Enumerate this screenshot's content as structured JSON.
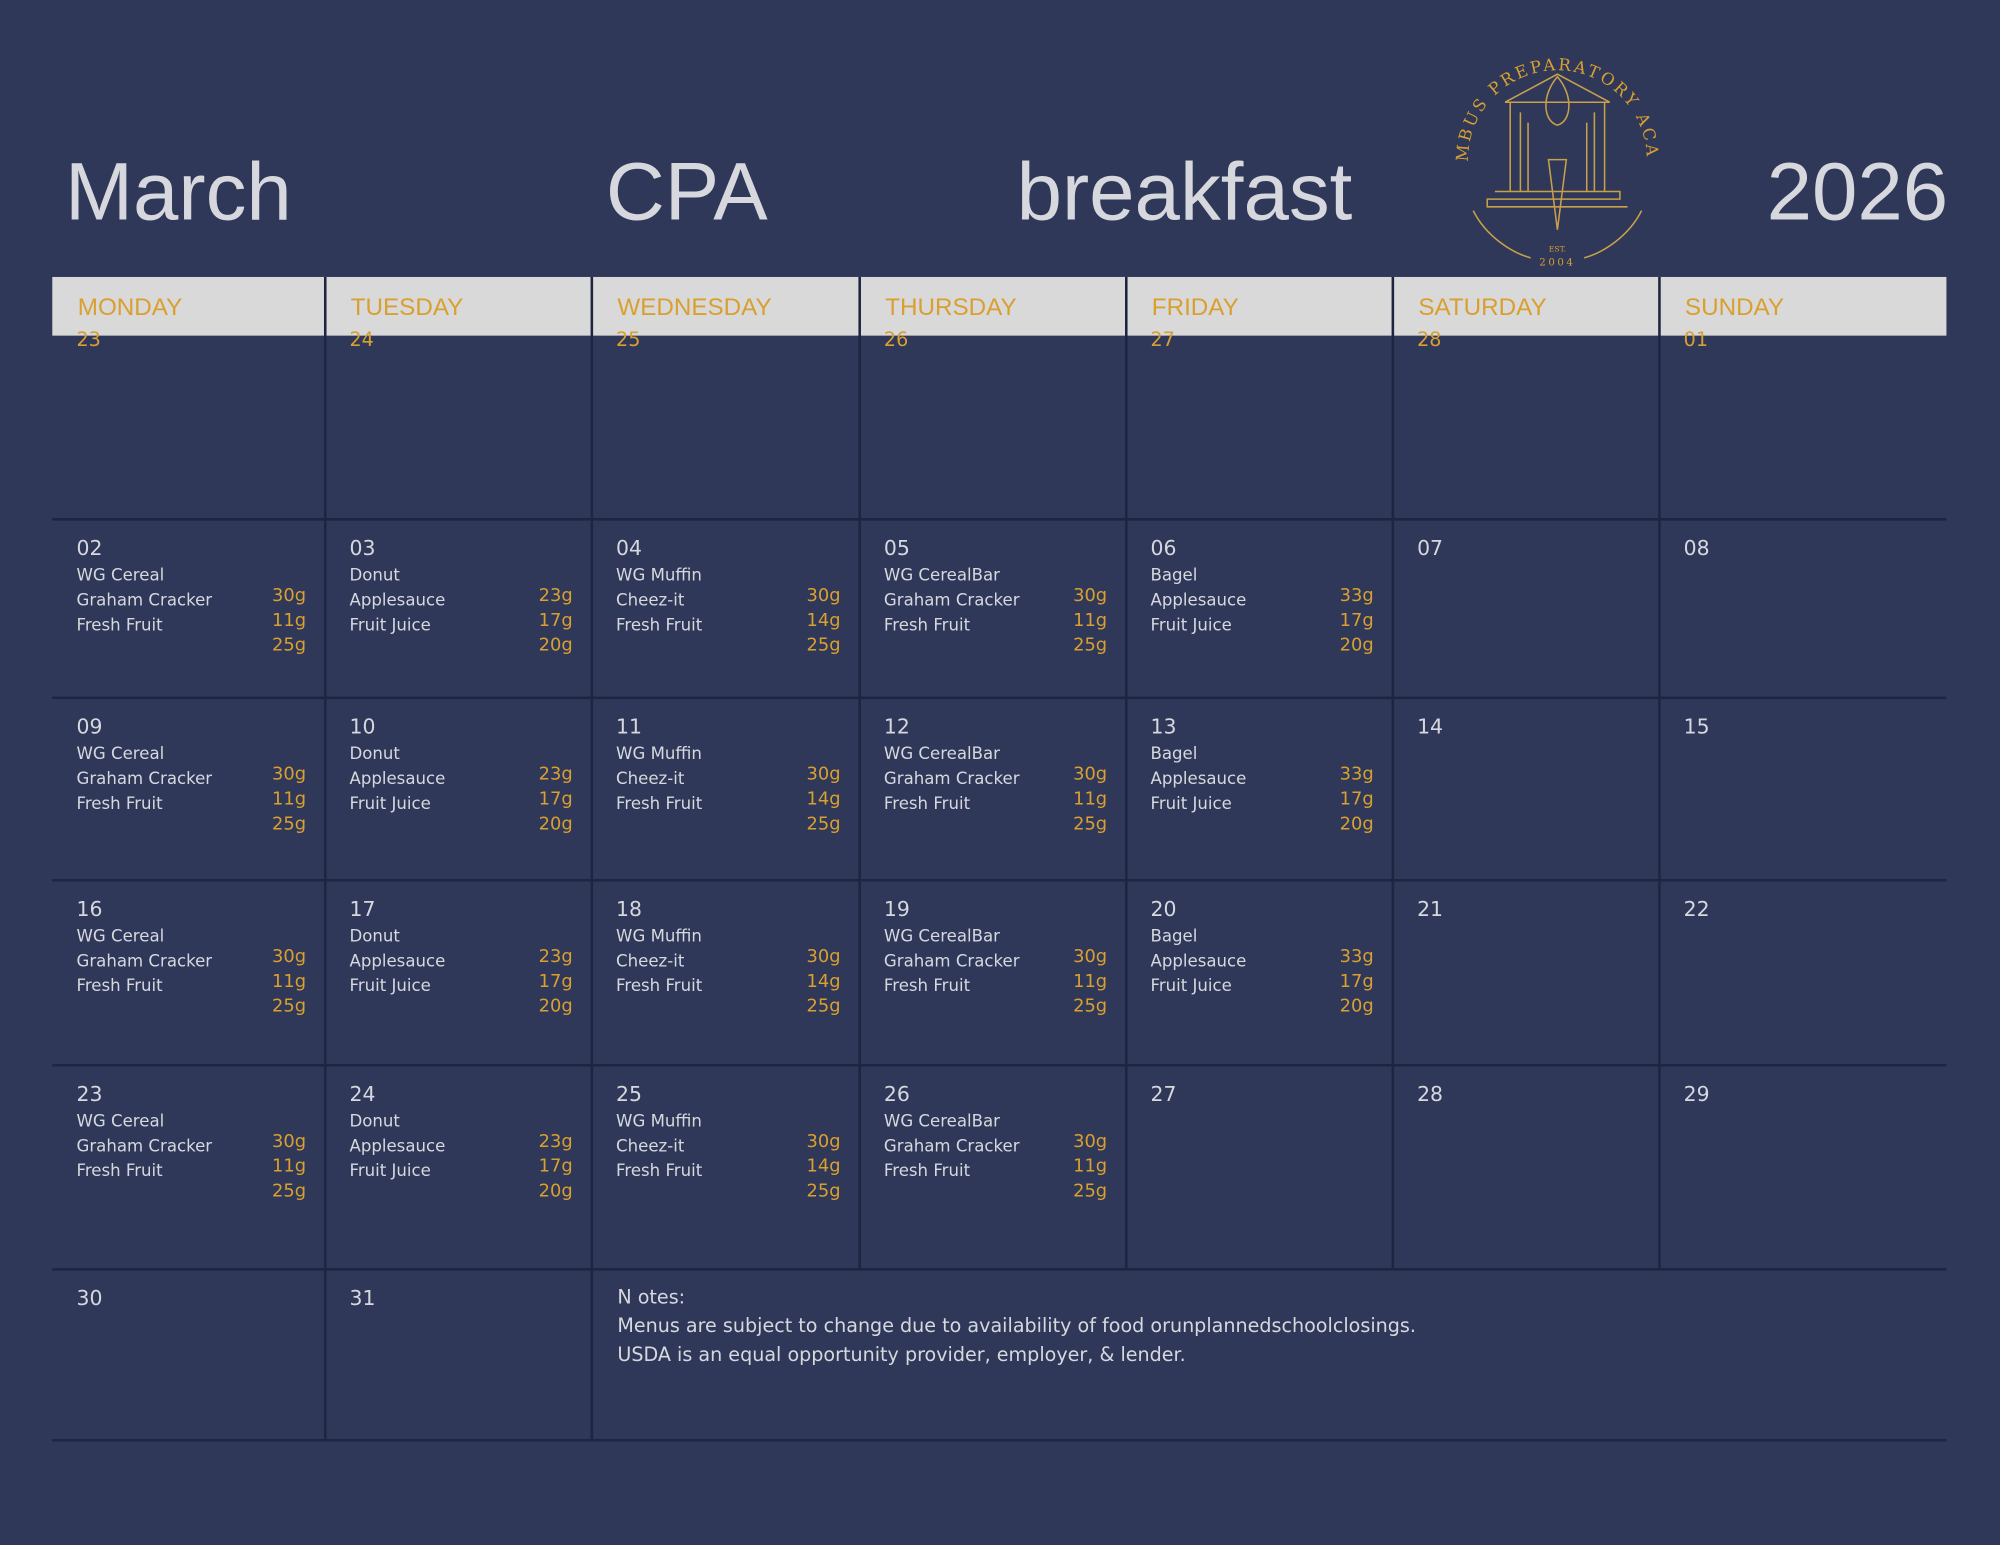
{
  "header": {
    "month": "March",
    "school": "CPA",
    "meal": "breakfast",
    "year": "2026"
  },
  "logo": {
    "name": "COLUMBUS PREPARATORY ACADEMY",
    "est": "EST.",
    "year": "2004"
  },
  "days": [
    "MONDAY",
    "TUESDAY",
    "WEDNESDAY",
    "THURSDAY",
    "FRIDAY",
    "SATURDAY",
    "SUNDAY"
  ],
  "weeks": [
    [
      {
        "date": "23"
      },
      {
        "date": "24"
      },
      {
        "date": "25"
      },
      {
        "date": "26"
      },
      {
        "date": "27"
      },
      {
        "date": "28"
      },
      {
        "date": "01"
      }
    ],
    [
      {
        "date": "02",
        "items": [
          "WG Cereal",
          "Graham Cracker",
          "Fresh Fruit"
        ],
        "amounts": [
          "30g",
          "11g",
          "25g"
        ]
      },
      {
        "date": "03",
        "items": [
          "Donut",
          "Applesauce",
          "Fruit Juice"
        ],
        "amounts": [
          "23g",
          "17g",
          "20g"
        ]
      },
      {
        "date": "04",
        "items": [
          "WG Muffin",
          "Cheez-it",
          "Fresh Fruit"
        ],
        "amounts": [
          "30g",
          "14g",
          "25g"
        ]
      },
      {
        "date": "05",
        "items": [
          "WG CerealBar",
          "Graham Cracker",
          "Fresh Fruit"
        ],
        "amounts": [
          "30g",
          "11g",
          "25g"
        ]
      },
      {
        "date": "06",
        "items": [
          "Bagel",
          "Applesauce",
          "Fruit Juice"
        ],
        "amounts": [
          "33g",
          "17g",
          "20g"
        ]
      },
      {
        "date": "07"
      },
      {
        "date": "08"
      }
    ],
    [
      {
        "date": "09",
        "items": [
          "WG Cereal",
          "Graham Cracker",
          "Fresh Fruit"
        ],
        "amounts": [
          "30g",
          "11g",
          "25g"
        ]
      },
      {
        "date": "10",
        "items": [
          "Donut",
          "Applesauce",
          "Fruit Juice"
        ],
        "amounts": [
          "23g",
          "17g",
          "20g"
        ]
      },
      {
        "date": "11",
        "items": [
          "WG Muffin",
          "Cheez-it",
          "Fresh Fruit"
        ],
        "amounts": [
          "30g",
          "14g",
          "25g"
        ]
      },
      {
        "date": "12",
        "items": [
          "WG CerealBar",
          "Graham Cracker",
          "Fresh Fruit"
        ],
        "amounts": [
          "30g",
          "11g",
          "25g"
        ]
      },
      {
        "date": "13",
        "items": [
          "Bagel",
          "Applesauce",
          "Fruit Juice"
        ],
        "amounts": [
          "33g",
          "17g",
          "20g"
        ]
      },
      {
        "date": "14"
      },
      {
        "date": "15"
      }
    ],
    [
      {
        "date": "16",
        "items": [
          "WG Cereal",
          "Graham Cracker",
          "Fresh Fruit"
        ],
        "amounts": [
          "30g",
          "11g",
          "25g"
        ]
      },
      {
        "date": "17",
        "items": [
          "Donut",
          "Applesauce",
          "Fruit Juice"
        ],
        "amounts": [
          "23g",
          "17g",
          "20g"
        ]
      },
      {
        "date": "18",
        "items": [
          "WG Muffin",
          "Cheez-it",
          "Fresh Fruit"
        ],
        "amounts": [
          "30g",
          "14g",
          "25g"
        ]
      },
      {
        "date": "19",
        "items": [
          "WG CerealBar",
          "Graham Cracker",
          "Fresh Fruit"
        ],
        "amounts": [
          "30g",
          "11g",
          "25g"
        ]
      },
      {
        "date": "20",
        "items": [
          "Bagel",
          "Applesauce",
          "Fruit Juice"
        ],
        "amounts": [
          "33g",
          "17g",
          "20g"
        ]
      },
      {
        "date": "21"
      },
      {
        "date": "22"
      }
    ],
    [
      {
        "date": "23",
        "items": [
          "WG Cereal",
          "Graham Cracker",
          "Fresh Fruit"
        ],
        "amounts": [
          "30g",
          "11g",
          "25g"
        ]
      },
      {
        "date": "24",
        "items": [
          "Donut",
          "Applesauce",
          "Fruit Juice"
        ],
        "amounts": [
          "23g",
          "17g",
          "20g"
        ]
      },
      {
        "date": "25",
        "items": [
          "WG Muffin",
          "Cheez-it",
          "Fresh Fruit"
        ],
        "amounts": [
          "30g",
          "14g",
          "25g"
        ]
      },
      {
        "date": "26",
        "items": [
          "WG CerealBar",
          "Graham Cracker",
          "Fresh Fruit"
        ],
        "amounts": [
          "30g",
          "11g",
          "25g"
        ]
      },
      {
        "date": "27"
      },
      {
        "date": "28"
      },
      {
        "date": "29"
      }
    ],
    [
      {
        "date": "30"
      },
      {
        "date": "31"
      }
    ]
  ],
  "notes": {
    "title": "N otes:",
    "lines": [
      "Menus are subject to change due to availability of food orunplannedschoolclosings.",
      "USDA is an equal opportunity provider, employer, & lender."
    ]
  }
}
